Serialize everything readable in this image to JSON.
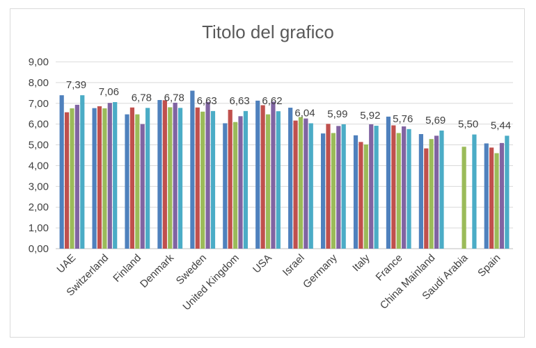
{
  "chart_data": {
    "type": "bar",
    "title": "Titolo del grafico",
    "categories": [
      "UAE",
      "Switzerland",
      "Finland",
      "Denmark",
      "Sweden",
      "United Kingdom",
      "USA",
      "Israel",
      "Germany",
      "Italy",
      "France",
      "China Mainland",
      "Saudi Arabia",
      "Spain"
    ],
    "ylim": [
      0,
      9
    ],
    "yticks": [
      "0,00",
      "1,00",
      "2,00",
      "3,00",
      "4,00",
      "5,00",
      "6,00",
      "7,00",
      "8,00",
      "9,00"
    ],
    "grid": true,
    "legend": "none",
    "colors": [
      "#4f81bd",
      "#c0504d",
      "#9bbb59",
      "#8064a2",
      "#4bacc6"
    ],
    "series": [
      {
        "values": [
          7.39,
          6.77,
          6.47,
          7.16,
          7.61,
          6.04,
          7.13,
          6.79,
          5.55,
          5.46,
          6.36,
          5.52,
          null,
          5.07
        ]
      },
      {
        "values": [
          6.57,
          6.86,
          6.8,
          7.15,
          6.8,
          6.69,
          6.91,
          6.17,
          6.01,
          5.14,
          5.94,
          4.83,
          null,
          4.87
        ]
      },
      {
        "values": [
          6.76,
          6.76,
          6.47,
          6.81,
          6.6,
          6.1,
          6.47,
          6.34,
          5.57,
          5.02,
          5.57,
          5.28,
          4.91,
          4.6
        ]
      },
      {
        "values": [
          6.93,
          7.02,
          6.0,
          7.03,
          7.07,
          6.38,
          7.08,
          6.27,
          5.91,
          5.99,
          5.89,
          5.44,
          null,
          5.09
        ]
      },
      {
        "values": [
          7.39,
          7.06,
          6.78,
          6.78,
          6.63,
          6.63,
          6.62,
          6.04,
          5.99,
          5.92,
          5.76,
          5.69,
          5.5,
          5.44
        ]
      }
    ],
    "data_labels": [
      "7,39",
      "7,06",
      "6,78",
      "6,78",
      "6,63",
      "6,63",
      "6,62",
      "6,04",
      "5,99",
      "5,92",
      "5,76",
      "5,69",
      "5,50",
      "5,44"
    ]
  }
}
